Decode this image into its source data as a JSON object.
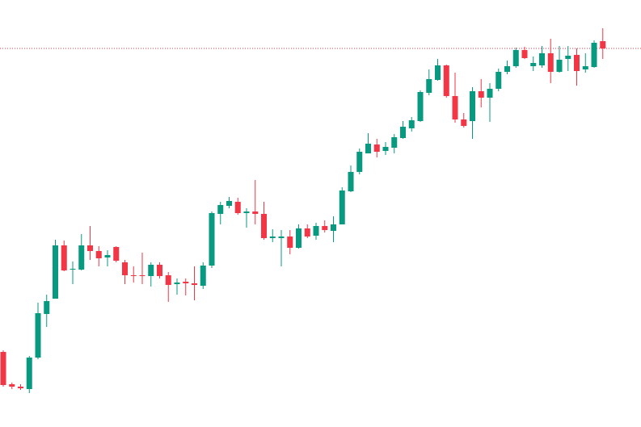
{
  "chart_data": {
    "type": "candlestick",
    "up_color": "#089981",
    "down_color": "#f23645",
    "ylim": [
      0,
      529
    ],
    "price_line": 469,
    "price_line_color": "#f23645",
    "open": [
      93,
      53,
      50,
      47,
      86,
      140,
      159,
      225,
      195,
      195,
      225,
      218,
      210,
      223,
      204,
      188,
      188,
      187,
      201,
      188,
      177,
      180,
      178,
      175,
      200,
      264,
      274,
      279,
      265,
      267,
      264,
      234,
      234,
      236,
      222,
      246,
      237,
      249,
      243,
      251,
      292,
      316,
      339,
      350,
      342,
      346,
      358,
      370,
      379,
      414,
      430,
      448,
      410,
      381,
      379,
      416,
      408,
      419,
      440,
      447,
      467,
      447,
      448,
      463,
      440,
      456,
      461,
      443,
      446,
      478
    ],
    "high": [
      95,
      55,
      53,
      88,
      154,
      164,
      232,
      231,
      205,
      239,
      249,
      224,
      219,
      224,
      207,
      199,
      216,
      204,
      204,
      192,
      184,
      184,
      199,
      204,
      267,
      279,
      285,
      284,
      271,
      306,
      279,
      245,
      244,
      244,
      251,
      251,
      253,
      256,
      261,
      297,
      324,
      345,
      364,
      357,
      353,
      363,
      379,
      384,
      417,
      443,
      456,
      449,
      439,
      389,
      421,
      431,
      426,
      444,
      454,
      470,
      471,
      459,
      472,
      481,
      472,
      472,
      469,
      463,
      479,
      494
    ],
    "low": [
      50,
      47,
      46,
      42,
      84,
      124,
      159,
      193,
      177,
      194,
      207,
      199,
      199,
      204,
      177,
      179,
      177,
      174,
      184,
      155,
      164,
      163,
      157,
      171,
      197,
      251,
      271,
      263,
      247,
      251,
      232,
      229,
      199,
      214,
      221,
      234,
      232,
      241,
      229,
      251,
      291,
      313,
      339,
      334,
      337,
      339,
      357,
      366,
      378,
      411,
      429,
      408,
      377,
      371,
      357,
      396,
      378,
      416,
      437,
      445,
      456,
      441,
      445,
      426,
      439,
      441,
      423,
      439,
      445,
      456
    ],
    "close": [
      52,
      50,
      48,
      86,
      141,
      156,
      225,
      194,
      196,
      225,
      218,
      209,
      213,
      206,
      188,
      187,
      187,
      201,
      187,
      176,
      179,
      178,
      176,
      200,
      265,
      275,
      280,
      265,
      267,
      264,
      234,
      236,
      236,
      222,
      246,
      236,
      249,
      244,
      251,
      293,
      316,
      341,
      351,
      341,
      347,
      359,
      372,
      380,
      415,
      431,
      448,
      410,
      381,
      373,
      416,
      408,
      419,
      440,
      447,
      467,
      457,
      451,
      463,
      440,
      455,
      460,
      441,
      447,
      476,
      469
    ]
  }
}
